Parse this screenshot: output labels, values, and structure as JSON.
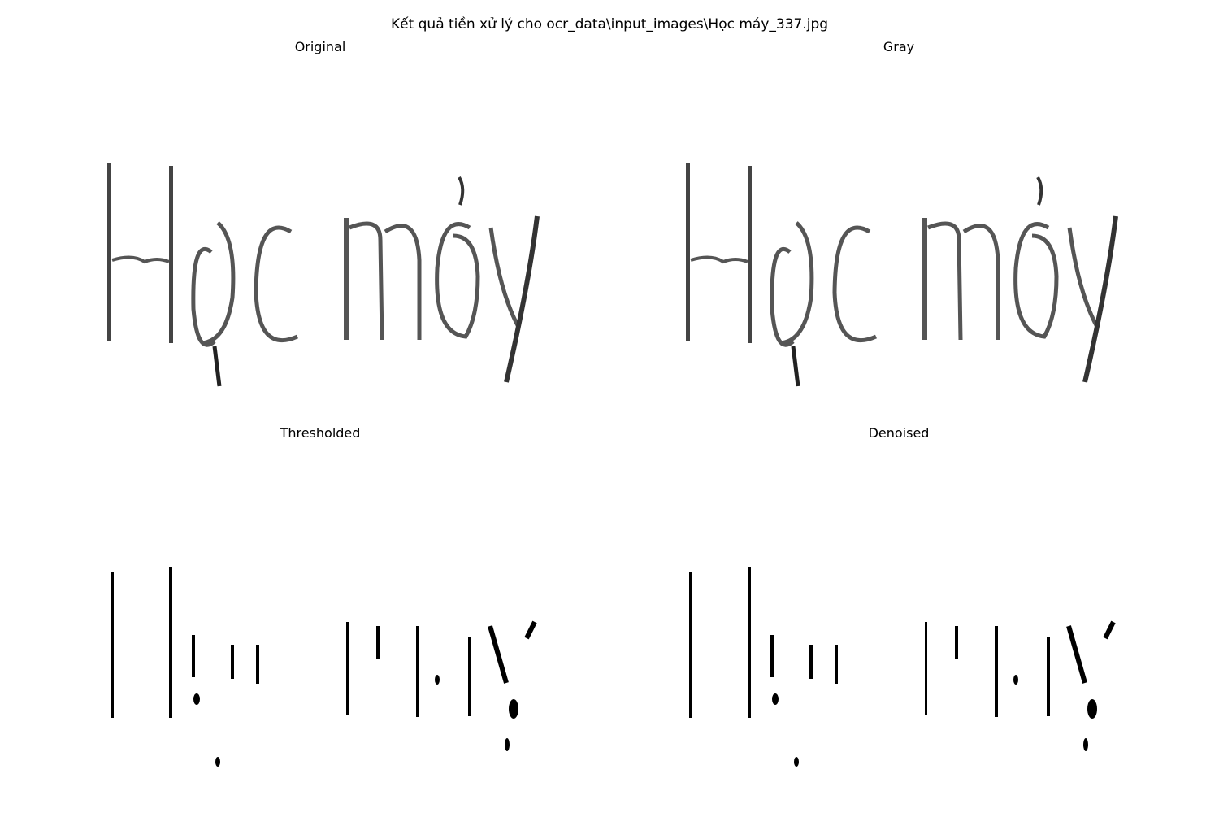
{
  "figure": {
    "suptitle": "Kết quả tiền xử lý cho ocr_data\\input_images\\Học máy_337.jpg"
  },
  "panels": [
    {
      "title": "Original",
      "image_text": "Học máy",
      "style": "soft"
    },
    {
      "title": "Gray",
      "image_text": "Học máy",
      "style": "soft"
    },
    {
      "title": "Thresholded",
      "image_text": "Học máy",
      "style": "binary"
    },
    {
      "title": "Denoised",
      "image_text": "Học máy",
      "style": "binary"
    }
  ],
  "colors": {
    "background": "#ffffff",
    "ink": "#000000",
    "soft_ink": "#4a4a4a",
    "noise": "#d6d6d6"
  }
}
